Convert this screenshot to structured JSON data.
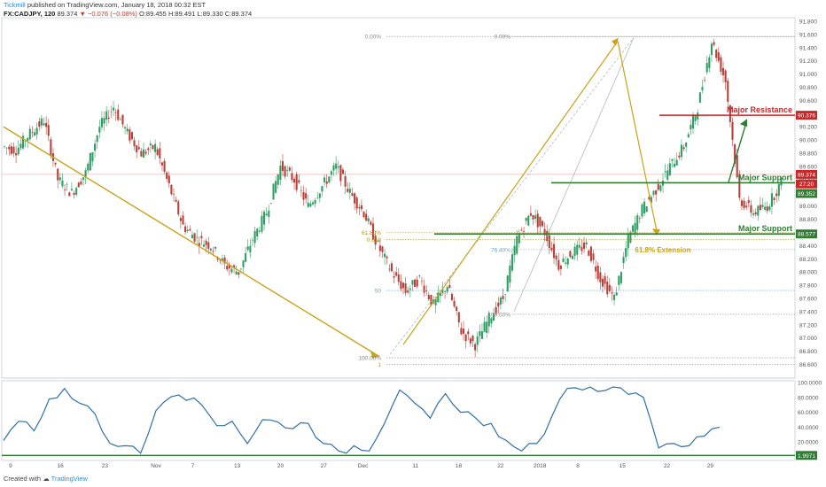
{
  "header": {
    "publisher": "Tickmill",
    "published_text": "published on TradingView.com, January 18, 2018 00:32 EST",
    "symbol": "FX:CADJPY, 120",
    "last": "89.374",
    "change": "−0.076 (−0.08%)",
    "ohlc": "O:89.455  H:89.491  L:89.330  C:89.374"
  },
  "footer": {
    "created_with": "Created with",
    "brand": "TradingView"
  },
  "colors": {
    "up": "#2e9e63",
    "down": "#b8403a",
    "trend": "#c9a21a",
    "green": "#2e7d32",
    "red": "#c62828",
    "rsi": "#2f6fa8",
    "fib": "#888888",
    "fib_gold": "#b8951c",
    "fib_blue": "#6a9fd0"
  },
  "price_axis": {
    "min": 86.5,
    "max": 91.8,
    "labels": [
      "91.800",
      "91.600",
      "91.400",
      "91.200",
      "91.000",
      "90.800",
      "90.600",
      "90.400",
      "90.200",
      "90.000",
      "89.800",
      "89.600",
      "89.400",
      "89.200",
      "89.000",
      "88.800",
      "88.600",
      "88.400",
      "88.200",
      "88.000",
      "87.800",
      "87.600",
      "87.400",
      "87.200",
      "87.000",
      "86.800",
      "86.600"
    ],
    "badges": [
      {
        "label": "90.376",
        "value": 90.376,
        "color": "#c62828"
      },
      {
        "label": "89.374",
        "value": 89.48,
        "color": "#c62828"
      },
      {
        "label": "27:20",
        "value": 89.335,
        "color": "#c62828"
      },
      {
        "label": "89.352",
        "value": 89.19,
        "color": "#2e7d32"
      },
      {
        "label": "88.577",
        "value": 88.577,
        "color": "#2e7d32"
      }
    ]
  },
  "rsi_axis": {
    "min": 0,
    "max": 100,
    "labels": [
      "100.0000",
      "80.0000",
      "60.0000",
      "40.0000",
      "20.0000"
    ],
    "badge": "1.9971"
  },
  "time_axis": {
    "count": 60,
    "labels": [
      {
        "t": "9",
        "i": 0.4
      },
      {
        "t": "16",
        "i": 4.2
      },
      {
        "t": "23",
        "i": 7.6
      },
      {
        "t": "Nov",
        "i": 11.5
      },
      {
        "t": "7",
        "i": 14.3
      },
      {
        "t": "13",
        "i": 17.7
      },
      {
        "t": "20",
        "i": 21.0
      },
      {
        "t": "27",
        "i": 24.3
      },
      {
        "t": "Dec",
        "i": 27.3
      },
      {
        "t": "11",
        "i": 31.3
      },
      {
        "t": "18",
        "i": 34.6
      },
      {
        "t": "22",
        "i": 37.8
      },
      {
        "t": "2018",
        "i": 40.8
      },
      {
        "t": "8",
        "i": 43.7
      },
      {
        "t": "15",
        "i": 47.1
      },
      {
        "t": "22",
        "i": 50.5
      },
      {
        "t": "29",
        "i": 53.8
      }
    ]
  },
  "chart_data": {
    "type": "candlestick",
    "symbol": "FX:CADJPY",
    "interval": "120",
    "y_range": [
      86.5,
      91.8
    ],
    "close": [
      89.9,
      89.85,
      90.1,
      90.3,
      89.4,
      89.2,
      89.5,
      90.2,
      90.5,
      90.1,
      89.8,
      89.9,
      89.3,
      88.7,
      88.5,
      88.4,
      88.1,
      88.0,
      88.5,
      88.9,
      89.6,
      89.4,
      89.0,
      89.3,
      89.6,
      89.2,
      88.9,
      88.4,
      88.0,
      87.7,
      87.9,
      87.5,
      87.8,
      87.1,
      86.9,
      87.3,
      87.6,
      88.5,
      88.9,
      88.6,
      88.1,
      88.3,
      88.4,
      87.9,
      87.6,
      88.5,
      88.95,
      89.25,
      89.6,
      89.9,
      90.5,
      91.5,
      90.9,
      89.1,
      88.9,
      89.0,
      89.35
    ],
    "rsi": [
      22,
      48,
      35,
      78,
      92,
      72,
      58,
      18,
      15,
      5,
      62,
      81,
      76,
      70,
      42,
      48,
      18,
      50,
      47,
      38,
      45,
      18,
      8,
      15,
      8,
      45,
      90,
      72,
      52,
      85,
      60,
      52,
      45,
      22,
      8,
      18,
      55,
      92,
      90,
      88,
      94,
      84,
      80,
      12,
      18,
      15,
      28,
      40
    ],
    "annotations": {
      "major_resistance": {
        "label": "Major Resistance",
        "value": 90.376
      },
      "major_support_upper": {
        "label": "Major Support",
        "value": 89.352
      },
      "major_support_lower": {
        "label": "Major Support",
        "value": 88.577
      },
      "fib_extension": {
        "label": "61.8% Extension",
        "value": 88.35
      },
      "fib_left": [
        {
          "label": "0.00%",
          "value": 91.57
        },
        {
          "label": "61.80%",
          "value": 88.6
        },
        {
          "label": "0.618",
          "value": 88.49
        },
        {
          "label": "50",
          "value": 87.72
        },
        {
          "label": "100.00%",
          "value": 86.7
        },
        {
          "label": "1",
          "value": 86.6
        }
      ],
      "fib_right": [
        {
          "label": "0.00%",
          "value": 91.57
        },
        {
          "label": "76.40%",
          "value": 88.34
        },
        {
          "label": "100.00%",
          "value": 87.36
        }
      ]
    }
  }
}
